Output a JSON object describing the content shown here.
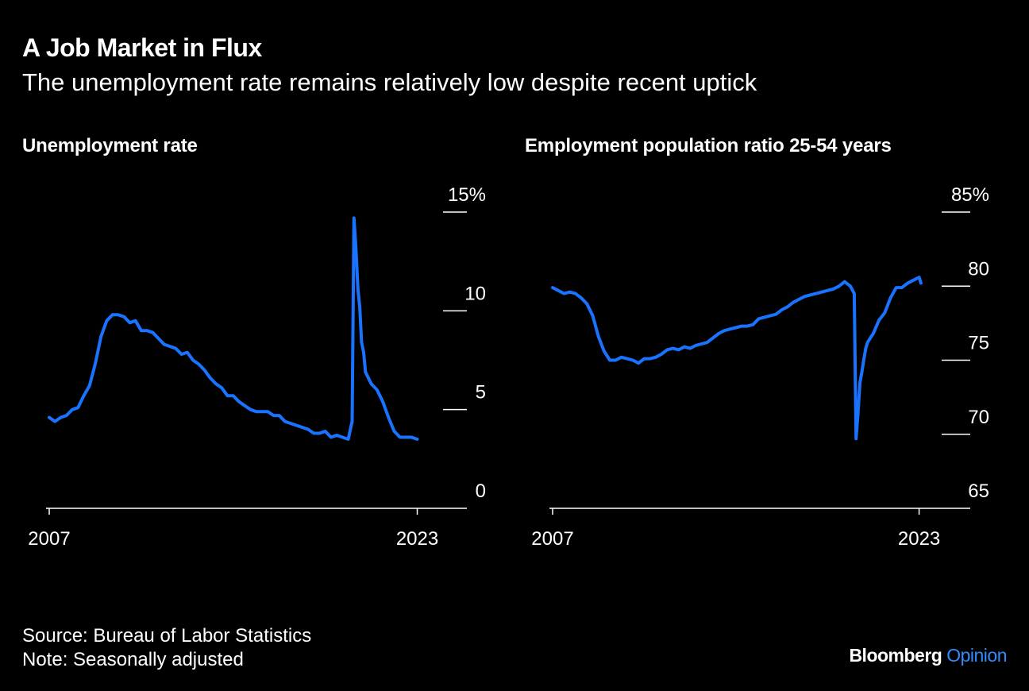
{
  "title": "A Job Market in Flux",
  "subtitle": "The unemployment rate remains relatively low despite recent uptick",
  "footer": {
    "source": "Source: Bureau of Labor Statistics",
    "note": "Note: Seasonally adjusted"
  },
  "logo": {
    "brand": "Bloomberg",
    "product": "Opinion"
  },
  "colors": {
    "background": "#000000",
    "line": "#1a73ff",
    "text": "#ffffff",
    "accent": "#2f8cff"
  },
  "chart_data": [
    {
      "type": "line",
      "title": "Unemployment rate",
      "xlim": [
        2007,
        2023.5
      ],
      "ylim": [
        0,
        15
      ],
      "x_ticks": [
        2007,
        2023
      ],
      "x_tick_labels": [
        "2007",
        "2023"
      ],
      "y_ticks": [
        0,
        5,
        10,
        15
      ],
      "y_tick_labels": [
        "0",
        "5",
        "10",
        "15%"
      ],
      "grid": false,
      "series": [
        {
          "x": [
            2007.0,
            2007.25,
            2007.5,
            2007.75,
            2008.0,
            2008.25,
            2008.5,
            2008.75,
            2009.0,
            2009.25,
            2009.5,
            2009.75,
            2010.0,
            2010.25,
            2010.5,
            2010.75,
            2011.0,
            2011.25,
            2011.5,
            2011.75,
            2012.0,
            2012.25,
            2012.5,
            2012.75,
            2013.0,
            2013.25,
            2013.5,
            2013.75,
            2014.0,
            2014.25,
            2014.5,
            2014.75,
            2015.0,
            2015.25,
            2015.5,
            2015.75,
            2016.0,
            2016.25,
            2016.5,
            2016.75,
            2017.0,
            2017.25,
            2017.5,
            2017.75,
            2018.0,
            2018.25,
            2018.5,
            2018.75,
            2019.0,
            2019.25,
            2019.5,
            2019.75,
            2020.0,
            2020.17,
            2020.25,
            2020.33,
            2020.42,
            2020.5,
            2020.58,
            2020.67,
            2020.75,
            2020.83,
            2021.0,
            2021.25,
            2021.5,
            2021.75,
            2022.0,
            2022.25,
            2022.5,
            2022.75,
            2023.0
          ],
          "values": [
            4.6,
            4.4,
            4.6,
            4.7,
            5.0,
            5.1,
            5.7,
            6.2,
            7.3,
            8.7,
            9.5,
            9.8,
            9.8,
            9.7,
            9.4,
            9.5,
            9.0,
            9.0,
            8.9,
            8.6,
            8.3,
            8.2,
            8.1,
            7.8,
            7.9,
            7.5,
            7.3,
            7.0,
            6.6,
            6.3,
            6.1,
            5.7,
            5.7,
            5.4,
            5.2,
            5.0,
            4.9,
            4.9,
            4.9,
            4.7,
            4.7,
            4.4,
            4.3,
            4.2,
            4.1,
            4.0,
            3.8,
            3.8,
            3.9,
            3.6,
            3.7,
            3.6,
            3.5,
            4.4,
            14.7,
            13.2,
            11.1,
            10.2,
            8.4,
            7.9,
            6.9,
            6.7,
            6.3,
            6.0,
            5.4,
            4.6,
            3.9,
            3.6,
            3.6,
            3.6,
            3.5
          ]
        }
      ]
    },
    {
      "type": "line",
      "title": "Employment population ratio 25-54 years",
      "xlim": [
        2007,
        2023.5
      ],
      "ylim": [
        65,
        85
      ],
      "x_ticks": [
        2007,
        2023
      ],
      "x_tick_labels": [
        "2007",
        "2023"
      ],
      "y_ticks": [
        65,
        70,
        75,
        80,
        85
      ],
      "y_tick_labels": [
        "65",
        "70",
        "75",
        "80",
        "85%"
      ],
      "grid": false,
      "series": [
        {
          "x": [
            2007.0,
            2007.25,
            2007.5,
            2007.75,
            2008.0,
            2008.25,
            2008.5,
            2008.75,
            2009.0,
            2009.25,
            2009.5,
            2009.75,
            2010.0,
            2010.25,
            2010.5,
            2010.75,
            2011.0,
            2011.25,
            2011.5,
            2011.75,
            2012.0,
            2012.25,
            2012.5,
            2012.75,
            2013.0,
            2013.25,
            2013.5,
            2013.75,
            2014.0,
            2014.25,
            2014.5,
            2014.75,
            2015.0,
            2015.25,
            2015.5,
            2015.75,
            2016.0,
            2016.25,
            2016.5,
            2016.75,
            2017.0,
            2017.25,
            2017.5,
            2017.75,
            2018.0,
            2018.25,
            2018.5,
            2018.75,
            2019.0,
            2019.25,
            2019.5,
            2019.75,
            2020.0,
            2020.17,
            2020.25,
            2020.33,
            2020.42,
            2020.5,
            2020.58,
            2020.67,
            2020.75,
            2020.83,
            2021.0,
            2021.25,
            2021.5,
            2021.75,
            2022.0,
            2022.25,
            2022.5,
            2022.75,
            2023.0,
            2023.08
          ],
          "values": [
            79.9,
            79.7,
            79.5,
            79.6,
            79.5,
            79.2,
            78.8,
            78.0,
            76.6,
            75.6,
            75.0,
            75.0,
            75.2,
            75.1,
            75.0,
            74.8,
            75.1,
            75.1,
            75.2,
            75.4,
            75.7,
            75.8,
            75.7,
            75.9,
            75.8,
            76.0,
            76.1,
            76.2,
            76.5,
            76.8,
            77.0,
            77.1,
            77.2,
            77.3,
            77.3,
            77.4,
            77.8,
            77.9,
            78.0,
            78.1,
            78.4,
            78.6,
            78.9,
            79.1,
            79.3,
            79.4,
            79.5,
            79.6,
            79.7,
            79.8,
            80.0,
            80.3,
            80.0,
            79.5,
            69.7,
            71.4,
            73.5,
            74.2,
            75.0,
            75.8,
            76.2,
            76.4,
            76.8,
            77.7,
            78.2,
            79.2,
            79.9,
            79.9,
            80.2,
            80.4,
            80.6,
            80.2
          ]
        }
      ]
    }
  ]
}
